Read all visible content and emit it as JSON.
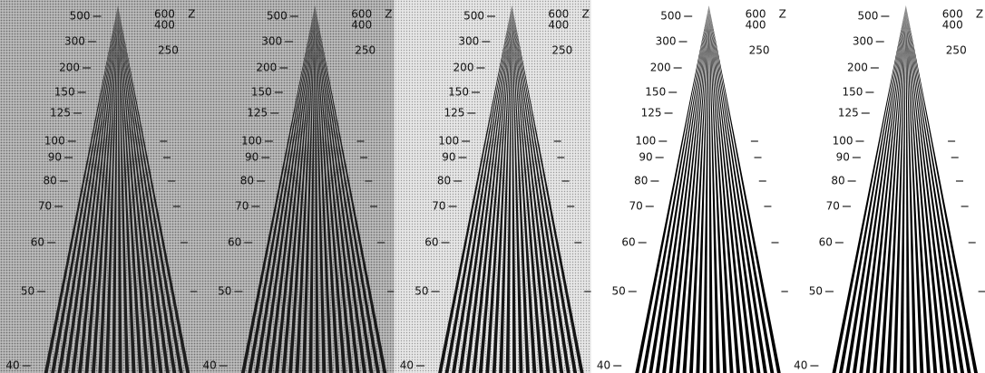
{
  "panels": [
    {
      "axis_label": "Z",
      "left_labels": [
        "500",
        "300",
        "200",
        "150",
        "125",
        "100",
        "90",
        "80",
        "70",
        "60",
        "50",
        "40"
      ],
      "right_labels": [
        "600",
        "400",
        "250"
      ]
    },
    {
      "axis_label": "Z",
      "left_labels": [
        "500",
        "300",
        "200",
        "150",
        "125",
        "100",
        "90",
        "80",
        "70",
        "60",
        "50",
        "40"
      ],
      "right_labels": [
        "600",
        "400",
        "250"
      ]
    },
    {
      "axis_label": "Z",
      "left_labels": [
        "500",
        "300",
        "200",
        "150",
        "125",
        "100",
        "90",
        "80",
        "70",
        "60",
        "50",
        "40"
      ],
      "right_labels": [
        "600",
        "400",
        "250"
      ]
    },
    {
      "axis_label": "Z",
      "left_labels": [
        "500",
        "300",
        "200",
        "150",
        "125",
        "100",
        "90",
        "80",
        "70",
        "60",
        "50",
        "40"
      ],
      "right_labels": [
        "600",
        "400",
        "250"
      ]
    },
    {
      "axis_label": "Z",
      "left_labels": [
        "500",
        "300",
        "200",
        "150",
        "125",
        "100",
        "90",
        "80",
        "70",
        "60",
        "50",
        "40"
      ],
      "right_labels": [
        "600",
        "400",
        "250"
      ]
    }
  ]
}
